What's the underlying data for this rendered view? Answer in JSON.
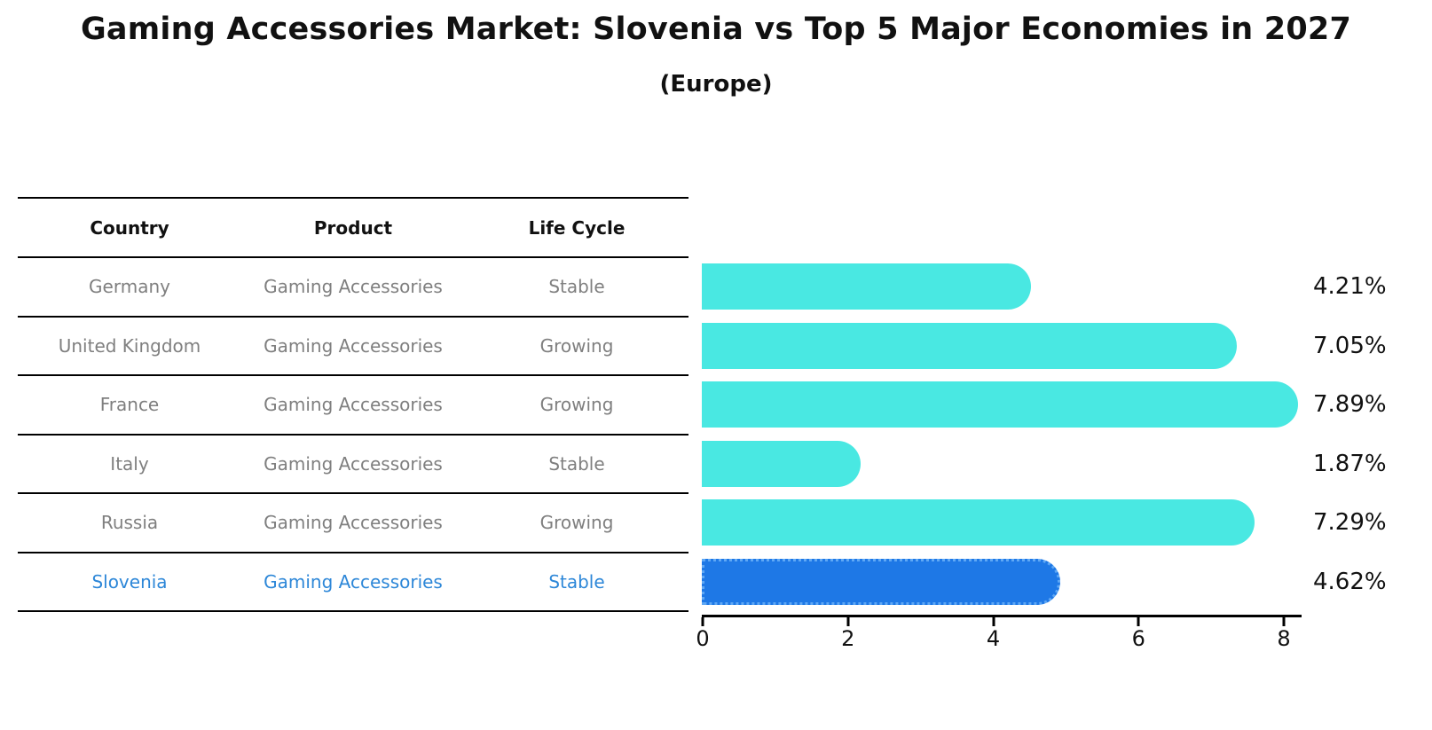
{
  "title": "Gaming Accessories Market: Slovenia vs Top 5 Major Economies in 2027",
  "subtitle": "(Europe)",
  "table": {
    "headers": [
      "Country",
      "Product",
      "Life Cycle"
    ],
    "rows": [
      {
        "country": "Germany",
        "product": "Gaming Accessories",
        "life_cycle": "Stable"
      },
      {
        "country": "United Kingdom",
        "product": "Gaming Accessories",
        "life_cycle": "Growing"
      },
      {
        "country": "France",
        "product": "Gaming Accessories",
        "life_cycle": "Growing"
      },
      {
        "country": "Italy",
        "product": "Gaming Accessories",
        "life_cycle": "Stable"
      },
      {
        "country": "Russia",
        "product": "Gaming Accessories",
        "life_cycle": "Growing"
      },
      {
        "country": "Slovenia",
        "product": "Gaming Accessories",
        "life_cycle": "Stable"
      }
    ],
    "highlight_index": 5
  },
  "chart_data": {
    "type": "bar",
    "orientation": "horizontal",
    "categories": [
      "Germany",
      "United Kingdom",
      "France",
      "Italy",
      "Russia",
      "Slovenia"
    ],
    "values": [
      4.21,
      7.05,
      7.89,
      1.87,
      7.29,
      4.62
    ],
    "value_labels": [
      "4.21%",
      "7.05%",
      "7.89%",
      "1.87%",
      "7.29%",
      "4.62%"
    ],
    "title": "Gaming Accessories Market: Slovenia vs Top 5 Major Economies in 2027 (Europe)",
    "xlabel": "",
    "ylabel": "",
    "xlim": [
      0,
      8.26
    ],
    "xticks": [
      "0",
      "2",
      "4",
      "6",
      "8"
    ],
    "grid": false,
    "legend": false,
    "bar_color": "#49E8E2",
    "highlight_color": "#1E78E6",
    "highlight_border_color": "#5FA8F5",
    "highlight_index": 5,
    "row_text_color": "#7F7F7F",
    "highlight_text_color": "#2D87D8"
  }
}
